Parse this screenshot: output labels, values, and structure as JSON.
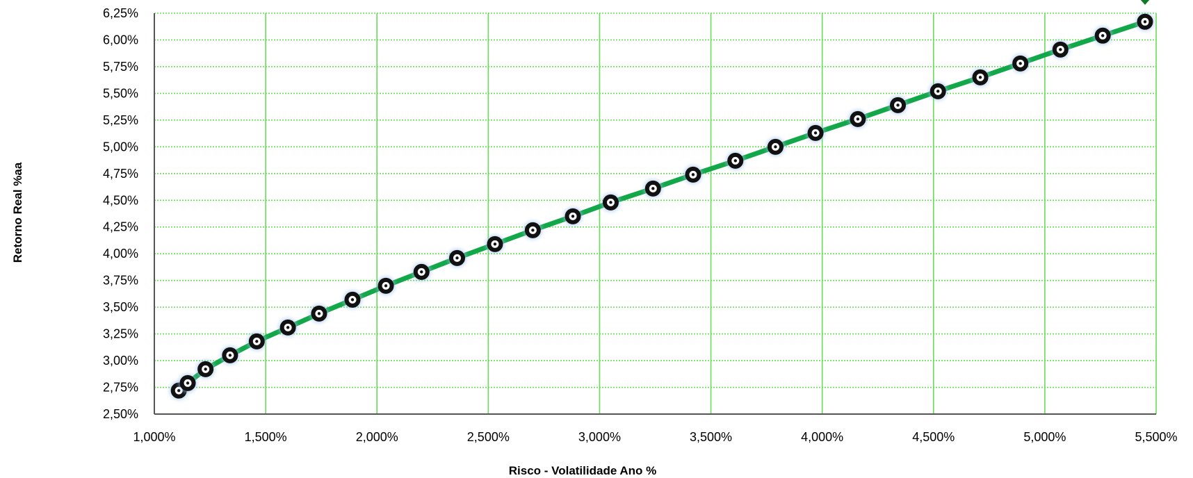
{
  "chart_data": {
    "type": "line",
    "title": "",
    "xlabel": "Risco - Volatilidade Ano %",
    "ylabel": "Retorno Real %aa",
    "xlim": [
      1.0,
      5.5
    ],
    "ylim": [
      2.5,
      6.25
    ],
    "x_ticks": [
      "1,000%",
      "1,500%",
      "2,000%",
      "2,500%",
      "3,000%",
      "3,500%",
      "4,000%",
      "4,500%",
      "5,000%",
      "5,500%"
    ],
    "y_ticks": [
      "2,50%",
      "2,75%",
      "3,00%",
      "3,25%",
      "3,50%",
      "3,75%",
      "4,00%",
      "4,25%",
      "4,50%",
      "4,75%",
      "5,00%",
      "5,25%",
      "5,50%",
      "5,75%",
      "6,00%",
      "6,25%"
    ],
    "grid": true,
    "colors": {
      "line": "#12a84a",
      "marker": "#111111",
      "grid": "#66dd55",
      "axis": "#555555",
      "marker_glow": "#9fc2ee",
      "end_marker": "#0f7a2a"
    },
    "series": [
      {
        "x": [
          1.11,
          1.15,
          1.23,
          1.34,
          1.46,
          1.6,
          1.74,
          1.89,
          2.04,
          2.2,
          2.36,
          2.53,
          2.7,
          2.88,
          3.05,
          3.24,
          3.42,
          3.61,
          3.79,
          3.97,
          4.16,
          4.34,
          4.52,
          4.71,
          4.89,
          5.07,
          5.26,
          5.45
        ],
        "y": [
          2.72,
          2.79,
          2.92,
          3.05,
          3.18,
          3.31,
          3.44,
          3.57,
          3.7,
          3.83,
          3.96,
          4.09,
          4.22,
          4.35,
          4.48,
          4.61,
          4.74,
          4.87,
          5.0,
          5.13,
          5.26,
          5.39,
          5.52,
          5.65,
          5.78,
          5.91,
          6.04,
          6.17
        ]
      }
    ]
  }
}
